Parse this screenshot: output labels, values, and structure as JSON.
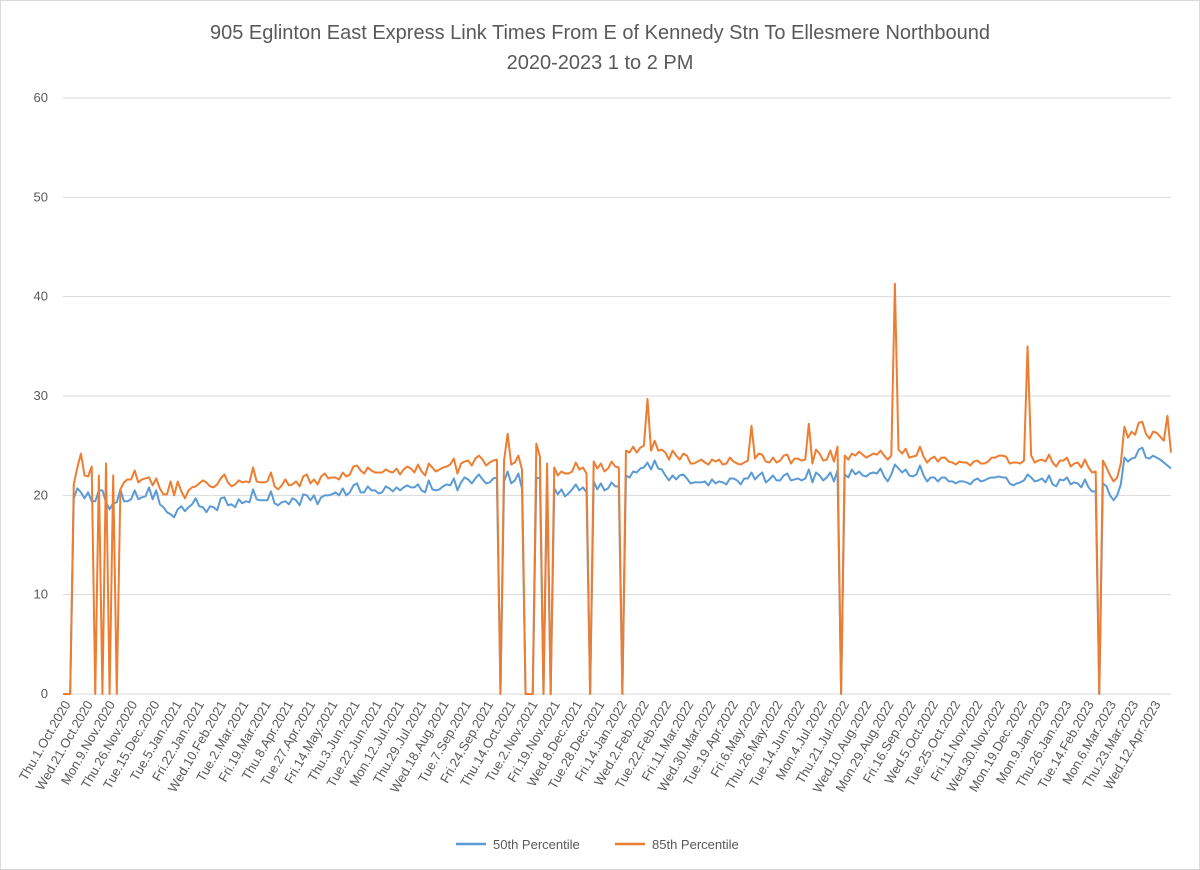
{
  "chart_data": {
    "type": "line",
    "title": "905 Eglinton East Express Link Times From E of Kennedy Stn To Ellesmere Northbound",
    "subtitle": "2020-2023 1 to 2 PM",
    "xlabel": "",
    "ylabel": "",
    "ylim": [
      0,
      60
    ],
    "y_ticks": [
      0,
      10,
      20,
      30,
      40,
      50,
      60
    ],
    "grid": true,
    "legend_position": "bottom",
    "x_tick_labels": [
      "Thu.1.Oct.2020",
      "Wed.21.Oct.2020",
      "Mon.9.Nov.2020",
      "Thu.26.Nov.2020",
      "Tue.15.Dec.2020",
      "Tue.5.Jan.2021",
      "Fri.22.Jan.2021",
      "Wed.10.Feb.2021",
      "Tue.2.Mar.2021",
      "Fri.19.Mar.2021",
      "Thu.8.Apr.2021",
      "Tue.27.Apr.2021",
      "Fri.14.May.2021",
      "Thu.3.Jun.2021",
      "Tue.22.Jun.2021",
      "Mon.12.Jul.2021",
      "Thu.29.Jul.2021",
      "Wed.18.Aug.2021",
      "Tue.7.Sep.2021",
      "Fri.24.Sep.2021",
      "Thu.14.Oct.2021",
      "Tue.2.Nov.2021",
      "Fri.19.Nov.2021",
      "Wed.8.Dec.2021",
      "Tue.28.Dec.2021",
      "Fri.14.Jan.2022",
      "Wed.2.Feb.2022",
      "Tue.22.Feb.2022",
      "Fri.11.Mar.2022",
      "Wed.30.Mar.2022",
      "Tue.19.Apr.2022",
      "Fri.6.May.2022",
      "Thu.26.May.2022",
      "Tue.14.Jun.2022",
      "Mon.4.Jul.2022",
      "Thu.21.Jul.2022",
      "Wed.10.Aug.2022",
      "Mon.29.Aug.2022",
      "Fri.16.Sep.2022",
      "Wed.5.Oct.2022",
      "Tue.25.Oct.2022",
      "Fri.11.Nov.2022",
      "Wed.30.Nov.2022",
      "Mon.19.Dec.2022",
      "Mon.9.Jan.2023",
      "Thu.26.Jan.2023",
      "Tue.14.Feb.2023",
      "Mon.6.Mar.2023",
      "Thu.23.Mar.2023",
      "Wed.12.Apr.2023"
    ],
    "series": [
      {
        "name": "50th Percentile",
        "color": "#5b9bd5",
        "values": [
          0,
          0,
          0,
          19.7,
          20.7,
          20.3,
          19.7,
          20.3,
          19.4,
          19.4,
          20.5,
          20.5,
          19.3,
          18.6,
          19.2,
          19.3,
          20.6,
          19.4,
          19.4,
          19.6,
          20.5,
          19.6,
          19.8,
          19.9,
          20.8,
          19.6,
          20.5,
          19.1,
          18.8,
          18.3,
          18.1,
          17.8,
          18.6,
          18.9,
          18.4,
          18.8,
          19.1,
          19.7,
          18.9,
          18.8,
          18.3,
          18.9,
          18.8,
          18.5,
          19.7,
          19.8,
          19.0,
          19.1,
          18.8,
          19.6,
          19.2,
          19.4,
          19.3,
          20.6,
          19.6,
          19.5,
          19.5,
          19.5,
          20.4,
          19.2,
          19.0,
          19.3,
          19.4,
          19.1,
          19.7,
          19.5,
          19.0,
          20.1,
          20.0,
          19.5,
          20.0,
          19.1,
          19.8,
          20.0,
          20.0,
          20.1,
          20.3,
          20.0,
          20.7,
          20.0,
          20.3,
          21.0,
          21.2,
          20.3,
          20.3,
          20.9,
          20.5,
          20.5,
          20.2,
          20.3,
          20.9,
          20.7,
          20.4,
          20.8,
          20.5,
          20.8,
          21.0,
          20.8,
          20.8,
          21.1,
          20.5,
          20.3,
          21.5,
          20.6,
          20.5,
          20.6,
          20.9,
          21.1,
          21.0,
          21.7,
          20.5,
          21.3,
          21.8,
          21.6,
          21.2,
          21.7,
          22.1,
          21.6,
          21.2,
          21.3,
          21.7,
          21.8,
          0,
          21.4,
          22.4,
          21.2,
          21.5,
          22.2,
          20.7,
          0,
          0,
          0,
          21.8,
          21.7,
          0,
          21.3,
          0,
          20.7,
          20.1,
          20.6,
          19.9,
          20.2,
          20.6,
          21.1,
          20.5,
          20.8,
          20.3,
          0,
          21.4,
          20.6,
          21.2,
          20.5,
          20.7,
          21.3,
          20.9,
          20.9,
          0,
          22.0,
          21.8,
          22.4,
          22.3,
          22.7,
          22.8,
          23.3,
          22.6,
          23.5,
          22.7,
          22.6,
          22.0,
          21.5,
          22.0,
          21.6,
          22.0,
          22.1,
          21.7,
          21.2,
          21.3,
          21.3,
          21.3,
          21.4,
          21.0,
          21.6,
          21.2,
          21.4,
          21.3,
          21.1,
          21.7,
          21.7,
          21.5,
          21.1,
          21.7,
          21.7,
          22.3,
          21.6,
          22.0,
          22.3,
          21.3,
          21.6,
          22.0,
          21.5,
          21.5,
          22.0,
          22.2,
          21.5,
          21.6,
          21.7,
          21.5,
          21.7,
          22.6,
          21.3,
          22.3,
          22.0,
          21.5,
          21.8,
          22.3,
          21.4,
          22.5,
          0,
          22.1,
          21.8,
          22.6,
          22.1,
          22.4,
          22.0,
          21.9,
          22.2,
          22.3,
          22.2,
          22.7,
          21.9,
          21.4,
          22.1,
          23.1,
          22.7,
          22.3,
          22.6,
          22.0,
          21.9,
          22.1,
          23.0,
          22.0,
          21.4,
          21.8,
          21.8,
          21.4,
          21.8,
          21.8,
          21.4,
          21.4,
          21.2,
          21.4,
          21.4,
          21.3,
          21.1,
          21.5,
          21.7,
          21.4,
          21.5,
          21.7,
          21.8,
          21.8,
          21.9,
          21.8,
          21.8,
          21.2,
          21.0,
          21.2,
          21.3,
          21.5,
          22.1,
          21.8,
          21.4,
          21.5,
          21.7,
          21.3,
          22.0,
          21.1,
          20.9,
          21.6,
          21.5,
          21.8,
          21.1,
          21.3,
          21.2,
          20.8,
          21.6,
          20.8,
          20.4,
          20.4,
          0,
          21.2,
          20.9,
          20.0,
          19.5,
          20.0,
          21.1,
          23.8,
          23.4,
          23.7,
          23.8,
          24.6,
          24.8,
          23.8,
          23.7,
          24.0,
          23.8,
          23.6,
          23.3,
          23.0,
          22.7
        ]
      },
      {
        "name": "85th Percentile",
        "color": "#ed7d31",
        "values": [
          0,
          0,
          0,
          21.1,
          22.8,
          24.2,
          22.0,
          21.9,
          22.9,
          0,
          22.0,
          0,
          23.2,
          0,
          22.0,
          0,
          20.6,
          21.3,
          21.6,
          21.6,
          22.5,
          21.3,
          21.6,
          21.7,
          21.8,
          21.0,
          21.7,
          20.7,
          20.1,
          20.1,
          21.4,
          20.0,
          21.4,
          20.4,
          19.7,
          20.5,
          20.8,
          20.9,
          21.2,
          21.5,
          21.3,
          20.9,
          20.8,
          21.1,
          21.7,
          22.1,
          21.3,
          20.9,
          21.1,
          21.5,
          21.3,
          21.4,
          21.3,
          22.8,
          21.4,
          21.3,
          21.3,
          21.4,
          22.3,
          20.9,
          20.6,
          21.0,
          21.6,
          21.0,
          21.1,
          21.4,
          20.9,
          21.9,
          22.1,
          21.2,
          21.6,
          21.1,
          21.9,
          22.2,
          21.7,
          21.8,
          21.8,
          21.6,
          22.3,
          21.9,
          22.1,
          22.9,
          23.0,
          22.5,
          22.2,
          22.8,
          22.5,
          22.3,
          22.3,
          22.3,
          22.6,
          22.4,
          22.3,
          22.7,
          22.1,
          22.6,
          22.9,
          22.7,
          22.3,
          23.1,
          22.4,
          22.0,
          23.2,
          22.8,
          22.4,
          22.6,
          22.8,
          22.9,
          23.1,
          23.7,
          22.2,
          23.2,
          23.4,
          23.5,
          23.0,
          23.7,
          24.0,
          23.6,
          23.0,
          23.3,
          23.5,
          23.6,
          0,
          23.5,
          26.2,
          23.1,
          23.3,
          24.0,
          22.6,
          0,
          0,
          0,
          25.2,
          23.9,
          0,
          23.2,
          0,
          22.8,
          22.0,
          22.4,
          22.2,
          22.2,
          22.4,
          23.3,
          22.6,
          22.8,
          22.2,
          0,
          23.4,
          22.7,
          23.2,
          22.4,
          22.7,
          23.4,
          22.9,
          22.8,
          0,
          24.5,
          24.3,
          24.9,
          24.3,
          24.8,
          25.0,
          29.7,
          24.5,
          25.5,
          24.5,
          24.6,
          24.3,
          23.6,
          24.5,
          24.0,
          23.6,
          24.2,
          24.0,
          23.2,
          23.2,
          23.4,
          23.6,
          23.3,
          23.1,
          23.6,
          23.4,
          23.6,
          23.1,
          23.2,
          23.8,
          23.4,
          23.2,
          23.1,
          23.3,
          23.5,
          27.0,
          23.7,
          24.2,
          24.1,
          23.4,
          23.3,
          23.8,
          23.3,
          23.5,
          24.0,
          24.1,
          23.2,
          23.7,
          23.7,
          23.5,
          23.6,
          27.2,
          23.2,
          24.6,
          24.2,
          23.5,
          23.6,
          24.5,
          23.4,
          24.9,
          0,
          24.0,
          23.6,
          24.2,
          24.0,
          24.4,
          24.1,
          23.8,
          24.0,
          24.2,
          24.1,
          24.5,
          24.0,
          23.6,
          24.0,
          41.3,
          24.6,
          24.2,
          24.7,
          23.8,
          23.9,
          24.0,
          24.9,
          23.9,
          23.3,
          23.7,
          23.9,
          23.4,
          23.8,
          23.8,
          23.4,
          23.3,
          23.1,
          23.4,
          23.3,
          23.3,
          23.0,
          23.4,
          23.5,
          23.2,
          23.2,
          23.4,
          23.8,
          23.8,
          24.0,
          24.0,
          23.9,
          23.2,
          23.3,
          23.3,
          23.2,
          23.5,
          35.0,
          24.0,
          23.3,
          23.5,
          23.6,
          23.4,
          24.1,
          23.3,
          22.9,
          23.5,
          23.5,
          23.8,
          22.9,
          23.2,
          23.3,
          22.8,
          23.6,
          22.8,
          22.3,
          22.4,
          0,
          23.5,
          22.8,
          22.0,
          21.4,
          21.8,
          23.2,
          26.9,
          25.8,
          26.4,
          26.1,
          27.3,
          27.4,
          26.2,
          25.7,
          26.4,
          26.3,
          25.9,
          25.5,
          28.0,
          24.3
        ]
      }
    ]
  }
}
